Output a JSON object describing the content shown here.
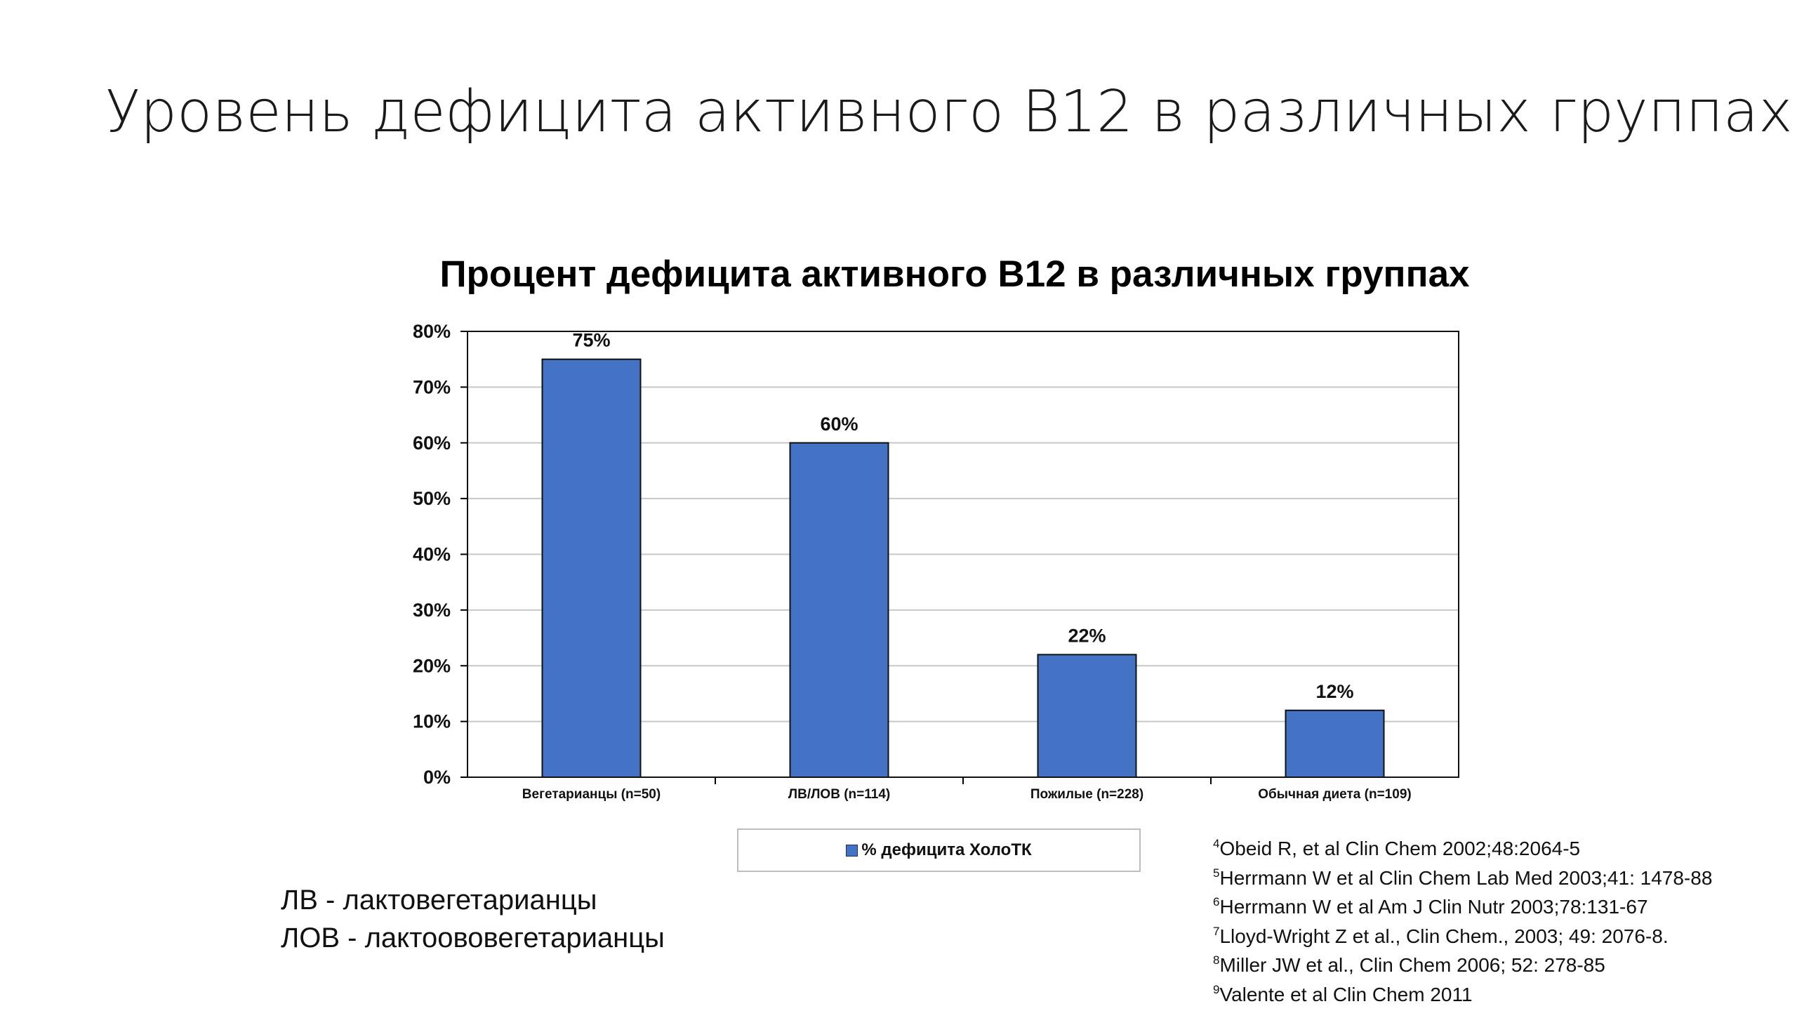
{
  "slide": {
    "title": "Уровень дефицита активного  B12 в различных группах"
  },
  "chart_data": {
    "type": "bar",
    "title": "Процент дефицита активного В12 в различных группах",
    "categories": [
      "Вегетарианцы (n=50)",
      "ЛВ/ЛОВ (n=114)",
      "Пожилые (n=228)",
      "Обычная диета (n=109)"
    ],
    "series": [
      {
        "name": "% дефицита ХолоТК",
        "values": [
          75,
          60,
          22,
          12
        ],
        "labels": [
          "75%",
          "60%",
          "22%",
          "12%"
        ]
      }
    ],
    "ylim": [
      0,
      80
    ],
    "yticks": [
      "0%",
      "10%",
      "20%",
      "30%",
      "40%",
      "50%",
      "60%",
      "70%",
      "80%"
    ],
    "grid": true,
    "legend_position": "bottom",
    "bar_color": "#4472C4"
  },
  "legend": {
    "label": "% дефицита ХолоТК"
  },
  "notes": [
    "ЛВ - лактовегетарианцы",
    "ЛОВ - лактоововегетарианцы"
  ],
  "references": [
    {
      "num": "4",
      "text": "Obeid R, et al Clin Chem 2002;48:2064-5"
    },
    {
      "num": "5",
      "text": "Herrmann W et al Clin Chem Lab Med 2003;41: 1478-88"
    },
    {
      "num": "6",
      "text": "Herrmann W et al Am J Clin Nutr 2003;78:131-67"
    },
    {
      "num": "7",
      "text": "Lloyd-Wright Z et al., Clin Chem., 2003; 49: 2076-8."
    },
    {
      "num": "8",
      "text": "Miller JW et al., Clin Chem 2006; 52: 278-85"
    },
    {
      "num": "9",
      "text": "Valente et al Clin Chem 2011"
    }
  ]
}
